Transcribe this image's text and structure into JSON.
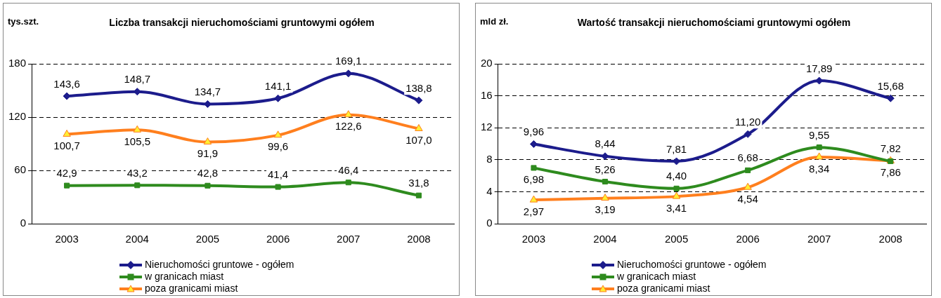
{
  "chart_data": [
    {
      "type": "line",
      "title": "Liczba transakcji nieruchomościami gruntowymi ogółem",
      "ylabel": "tys.szt.",
      "categories": [
        "2003",
        "2004",
        "2005",
        "2006",
        "2007",
        "2008"
      ],
      "ylim": [
        0,
        180
      ],
      "yticks": [
        0,
        60,
        120,
        180
      ],
      "grid": "y",
      "legend": "bottom",
      "line_style": "solid",
      "series": [
        {
          "name": "Nieruchomości gruntowe - ogółem",
          "color": "#1c1c8c",
          "marker": "diamond",
          "values": [
            143.6,
            148.7,
            134.7,
            141.1,
            169.1,
            138.8
          ],
          "value_labels": [
            "143,6",
            "148,7",
            "134,7",
            "141,1",
            "169,1",
            "138,8"
          ]
        },
        {
          "name": "w granicach miast",
          "color": "#2e8b1e",
          "marker": "square",
          "values": [
            42.9,
            43.2,
            42.8,
            41.4,
            46.4,
            31.8
          ],
          "value_labels": [
            "42,9",
            "43,2",
            "42,8",
            "41,4",
            "46,4",
            "31,8"
          ]
        },
        {
          "name": "poza granicami miast",
          "color": "#ff7f1e",
          "marker": "triangle",
          "values": [
            100.7,
            105.5,
            91.9,
            99.6,
            122.6,
            107.0
          ],
          "value_labels": [
            "100,7",
            "105,5",
            "91,9",
            "99,6",
            "122,6",
            "107,0"
          ]
        }
      ]
    },
    {
      "type": "line",
      "title": "Wartość transakcji nieruchomościami gruntowymi ogółem",
      "ylabel": "mld zł.",
      "categories": [
        "2003",
        "2004",
        "2005",
        "2006",
        "2007",
        "2008"
      ],
      "ylim": [
        0,
        20
      ],
      "yticks": [
        0,
        4,
        8,
        12,
        16,
        20
      ],
      "grid": "y",
      "legend": "bottom",
      "line_style": "solid",
      "series": [
        {
          "name": "Nieruchomości gruntowe - ogółem",
          "color": "#1c1c8c",
          "marker": "diamond",
          "values": [
            9.96,
            8.44,
            7.81,
            11.2,
            17.89,
            15.68
          ],
          "value_labels": [
            "9,96",
            "8,44",
            "7,81",
            "11,20",
            "17,89",
            "15,68"
          ]
        },
        {
          "name": "w granicach miast",
          "color": "#2e8b1e",
          "marker": "square",
          "values": [
            6.98,
            5.26,
            4.4,
            6.68,
            9.55,
            7.82
          ],
          "value_labels": [
            "6,98",
            "5,26",
            "4,40",
            "6,68",
            "9,55",
            "7,82"
          ]
        },
        {
          "name": "poza granicami miast",
          "color": "#ff7f1e",
          "marker": "triangle",
          "values": [
            2.97,
            3.19,
            3.41,
            4.54,
            8.34,
            7.86
          ],
          "value_labels": [
            "2,97",
            "3,19",
            "3,41",
            "4,54",
            "8,34",
            "7,86"
          ]
        }
      ]
    }
  ]
}
